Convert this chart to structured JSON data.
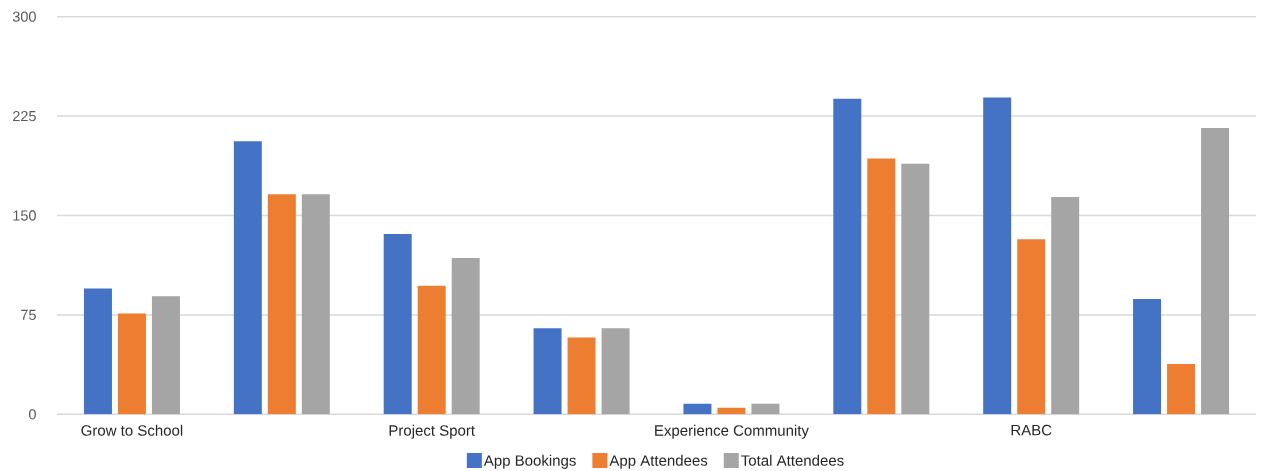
{
  "chart_data": {
    "type": "bar",
    "categories": [
      "Grow to School",
      null,
      "Project Sport",
      null,
      "Experience Community",
      null,
      "RABC",
      null
    ],
    "series": [
      {
        "name": "App Bookings",
        "color": "#4472c4",
        "values": [
          95,
          206,
          136,
          65,
          8,
          238,
          239,
          87
        ]
      },
      {
        "name": "App Attendees",
        "color": "#ed7d31",
        "values": [
          76,
          166,
          97,
          58,
          5,
          193,
          132,
          38
        ]
      },
      {
        "name": "Total Attendees",
        "color": "#a5a5a5",
        "values": [
          89,
          166,
          118,
          65,
          8,
          189,
          164,
          216
        ]
      }
    ],
    "ylim": [
      0,
      300
    ],
    "yticks": [
      0,
      75,
      150,
      225,
      300
    ],
    "grid": "y",
    "legend": "bottom"
  }
}
